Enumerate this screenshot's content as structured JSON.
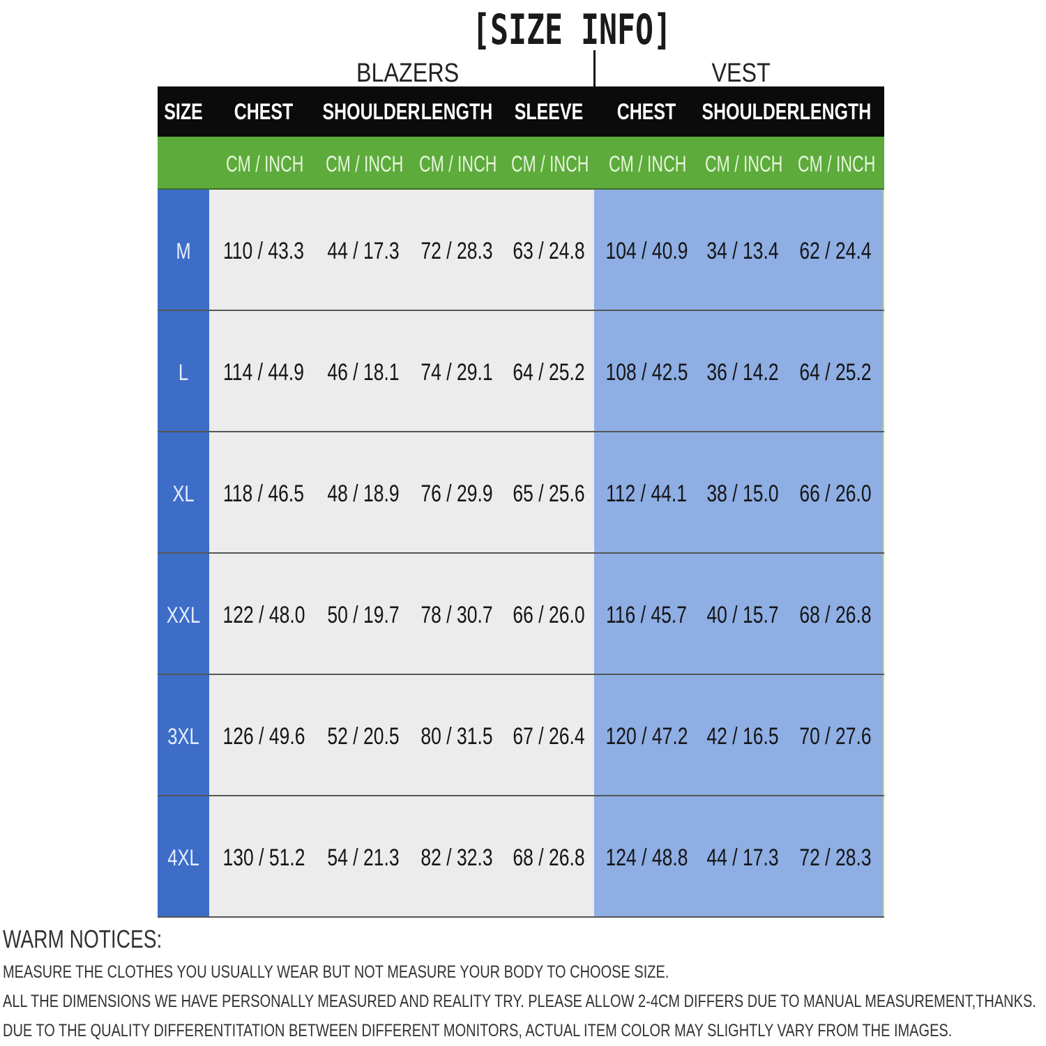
{
  "title": "[SIZE INFO]",
  "groups": {
    "blazers": "BLAZERS",
    "vest": "VEST"
  },
  "colors": {
    "header": "#0b0b0b",
    "units_row": "#5cab3b",
    "size_column": "#3e6dc8",
    "blazers_area": "#ececec",
    "vest_area": "#8eaee4"
  },
  "headers": [
    "SIZE",
    "CHEST",
    "SHOULDER",
    "LENGTH",
    "SLEEVE",
    "CHEST",
    "SHOULDER",
    "LENGTH"
  ],
  "units": [
    "",
    "CM / INCH",
    "CM / INCH",
    "CM / INCH",
    "CM / INCH",
    "CM / INCH",
    "CM / INCH",
    "CM / INCH"
  ],
  "rows": [
    [
      "M",
      "110 / 43.3",
      "44 / 17.3",
      "72 / 28.3",
      "63 / 24.8",
      "104 / 40.9",
      "34 / 13.4",
      "62 / 24.4"
    ],
    [
      "L",
      "114 / 44.9",
      "46 / 18.1",
      "74 / 29.1",
      "64 / 25.2",
      "108 / 42.5",
      "36 / 14.2",
      "64 / 25.2"
    ],
    [
      "XL",
      "118 / 46.5",
      "48 / 18.9",
      "76 / 29.9",
      "65 / 25.6",
      "112 / 44.1",
      "38 / 15.0",
      "66 / 26.0"
    ],
    [
      "XXL",
      "122 / 48.0",
      "50 / 19.7",
      "78 / 30.7",
      "66 / 26.0",
      "116 / 45.7",
      "40 / 15.7",
      "68 / 26.8"
    ],
    [
      "3XL",
      "126 / 49.6",
      "52 / 20.5",
      "80 / 31.5",
      "67 / 26.4",
      "120 / 47.2",
      "42 / 16.5",
      "70 / 27.6"
    ],
    [
      "4XL",
      "130 / 51.2",
      "54 / 21.3",
      "82 / 32.3",
      "68 / 26.8",
      "124 / 48.8",
      "44 / 17.3",
      "72 / 28.3"
    ]
  ],
  "notices": {
    "heading": "WARM NOTICES:",
    "lines": [
      "MEASURE THE CLOTHES YOU USUALLY WEAR BUT NOT MEASURE YOUR BODY TO CHOOSE SIZE.",
      "ALL THE DIMENSIONS WE HAVE PERSONALLY MEASURED AND REALITY TRY. PLEASE ALLOW 2-4CM DIFFERS DUE TO MANUAL MEASUREMENT,THANKS.",
      "DUE TO THE QUALITY DIFFERENTITATION BETWEEN DIFFERENT MONITORS, ACTUAL ITEM COLOR MAY SLIGHTLY VARY FROM THE IMAGES."
    ]
  }
}
